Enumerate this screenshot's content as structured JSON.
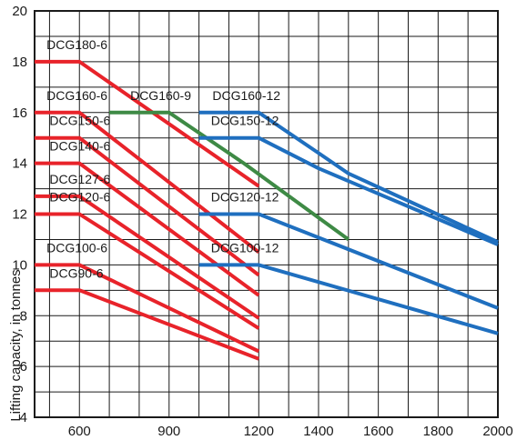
{
  "chart_data": {
    "type": "line",
    "ylabel": "Lifting capacity, in tonnes",
    "xlabel": "",
    "grid": true,
    "xlim": [
      450,
      2000
    ],
    "ylim": [
      4,
      20
    ],
    "x_ticks": [
      600,
      900,
      1200,
      1400,
      1600,
      1800,
      2000
    ],
    "y_ticks": [
      4,
      6,
      8,
      10,
      12,
      14,
      16,
      18,
      20
    ],
    "colors": {
      "red": "#e8232a",
      "green": "#3e8a45",
      "blue": "#1f6fbf",
      "axis": "#1a1a1a",
      "grid": "#1a1a1a"
    },
    "series": [
      {
        "name": "DCG180-6",
        "color": "red",
        "points": [
          [
            450,
            18
          ],
          [
            600,
            18
          ],
          [
            1200,
            13.1
          ]
        ]
      },
      {
        "name": "DCG160-6",
        "color": "red",
        "points": [
          [
            450,
            16
          ],
          [
            600,
            16
          ],
          [
            1200,
            10.5
          ]
        ]
      },
      {
        "name": "DCG150-6",
        "color": "red",
        "points": [
          [
            450,
            15
          ],
          [
            600,
            15
          ],
          [
            1200,
            9.6
          ]
        ]
      },
      {
        "name": "DCG140-6",
        "color": "red",
        "points": [
          [
            450,
            14
          ],
          [
            600,
            14
          ],
          [
            1200,
            8.8
          ]
        ]
      },
      {
        "name": "DCG127-6",
        "color": "red",
        "points": [
          [
            450,
            12.7
          ],
          [
            600,
            12.7
          ],
          [
            1200,
            7.9
          ]
        ]
      },
      {
        "name": "DCG120-6",
        "color": "red",
        "points": [
          [
            450,
            12
          ],
          [
            600,
            12
          ],
          [
            1200,
            7.5
          ]
        ]
      },
      {
        "name": "DCG100-6",
        "color": "red",
        "points": [
          [
            450,
            10
          ],
          [
            600,
            10
          ],
          [
            1200,
            6.6
          ]
        ]
      },
      {
        "name": "DCG90-6",
        "color": "red",
        "points": [
          [
            450,
            9
          ],
          [
            600,
            9
          ],
          [
            1200,
            6.3
          ]
        ]
      },
      {
        "name": "DCG160-9",
        "color": "green",
        "points": [
          [
            700,
            16
          ],
          [
            900,
            16
          ],
          [
            1150,
            14
          ],
          [
            1500,
            11
          ]
        ]
      },
      {
        "name": "DCG160-12",
        "color": "blue",
        "points": [
          [
            1000,
            16
          ],
          [
            1200,
            16
          ],
          [
            1400,
            14.4
          ],
          [
            1500,
            13.6
          ],
          [
            2000,
            10.9
          ]
        ]
      },
      {
        "name": "DCG150-12",
        "color": "blue",
        "points": [
          [
            1000,
            15
          ],
          [
            1200,
            15
          ],
          [
            1400,
            13.8
          ],
          [
            2000,
            10.8
          ]
        ]
      },
      {
        "name": "DCG120-12",
        "color": "blue",
        "points": [
          [
            1000,
            12
          ],
          [
            1200,
            12
          ],
          [
            2000,
            8.3
          ]
        ]
      },
      {
        "name": "DCG100-12",
        "color": "blue",
        "points": [
          [
            1000,
            10
          ],
          [
            1200,
            10
          ],
          [
            2000,
            7.3
          ]
        ]
      }
    ],
    "labels": [
      {
        "text": "DCG180-6",
        "x": 490,
        "y": 18.5
      },
      {
        "text": "DCG160-6",
        "x": 490,
        "y": 16.5
      },
      {
        "text": "DCG150-6",
        "x": 500,
        "y": 15.5
      },
      {
        "text": "DCG140-6",
        "x": 500,
        "y": 14.5
      },
      {
        "text": "DCG127-6",
        "x": 500,
        "y": 13.2
      },
      {
        "text": "DCG120-6",
        "x": 500,
        "y": 12.5
      },
      {
        "text": "DCG100-6",
        "x": 490,
        "y": 10.5
      },
      {
        "text": "DCG90-6",
        "x": 500,
        "y": 9.5
      },
      {
        "text": "DCG160-9",
        "x": 770,
        "y": 16.5
      },
      {
        "text": "DCG160-12",
        "x": 1045,
        "y": 16.5
      },
      {
        "text": "DCG150-12",
        "x": 1040,
        "y": 15.5
      },
      {
        "text": "DCG120-12",
        "x": 1040,
        "y": 12.5
      },
      {
        "text": "DCG100-12",
        "x": 1040,
        "y": 10.5
      }
    ]
  }
}
